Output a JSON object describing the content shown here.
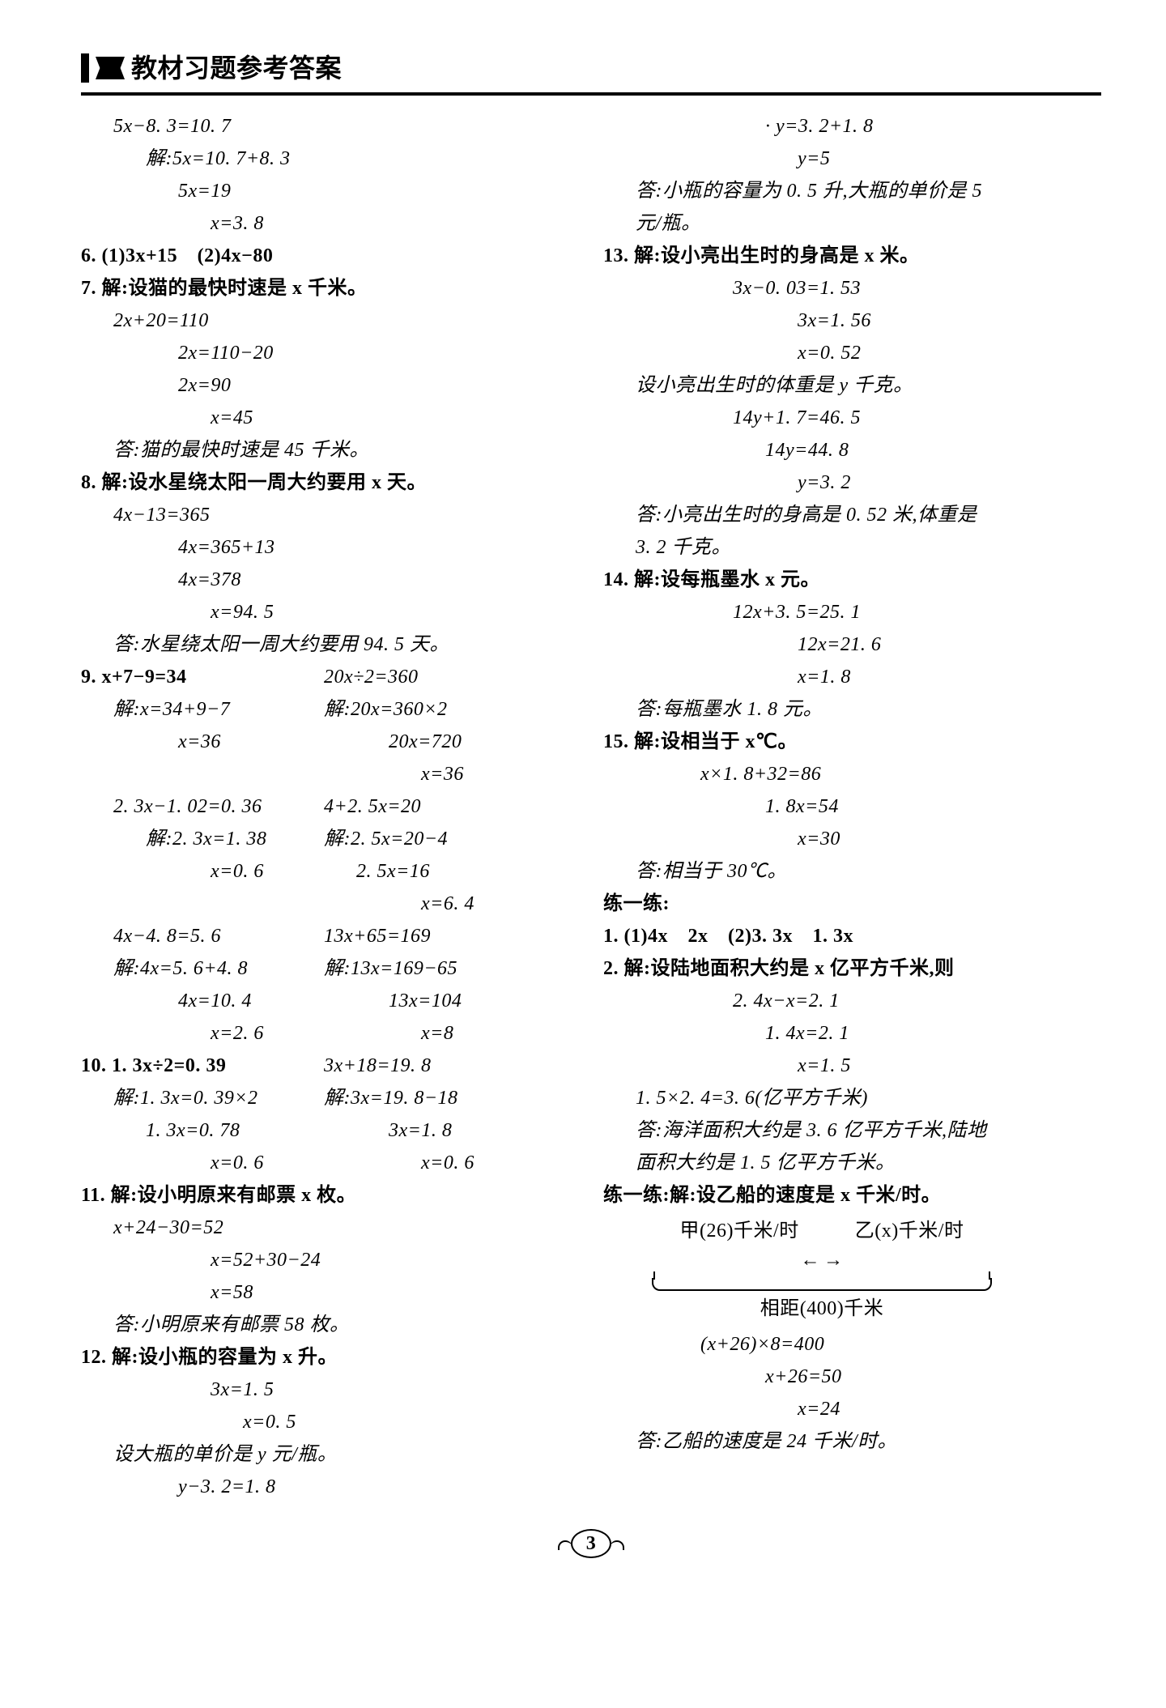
{
  "header": "教材习题参考答案",
  "footer_page": "3",
  "left": [
    {
      "cls": "indent1",
      "t": "5x−8. 3=10. 7"
    },
    {
      "cls": "indent2",
      "t": "解:5x=10. 7+8. 3"
    },
    {
      "cls": "indent3",
      "t": "5x=19"
    },
    {
      "cls": "indent4",
      "t": "x=3. 8"
    },
    {
      "cls": "",
      "t": "6. (1)3x+15　(2)4x−80",
      "bold": true
    },
    {
      "cls": "",
      "t": "7. 解:设猫的最快时速是 x 千米。",
      "bold": true
    },
    {
      "cls": "indent1",
      "t": "2x+20=110"
    },
    {
      "cls": "indent3",
      "t": "2x=110−20"
    },
    {
      "cls": "indent3",
      "t": "2x=90"
    },
    {
      "cls": "indent4",
      "t": "x=45"
    },
    {
      "cls": "indent1",
      "t": "答:猫的最快时速是 45 千米。"
    },
    {
      "cls": "",
      "t": "8. 解:设水星绕太阳一周大约要用 x 天。",
      "bold": true
    },
    {
      "cls": "indent1",
      "t": "4x−13=365"
    },
    {
      "cls": "indent3",
      "t": "4x=365+13"
    },
    {
      "cls": "indent3",
      "t": "4x=378"
    },
    {
      "cls": "indent4",
      "t": "x=94. 5"
    },
    {
      "cls": "indent1",
      "t": "答:水星绕太阳一周大约要用 94. 5 天。"
    },
    {
      "pair": [
        {
          "cls": "",
          "t": "9. x+7−9=34",
          "bold": true
        },
        {
          "cls": "",
          "t": "20x÷2=360"
        }
      ]
    },
    {
      "pair": [
        {
          "cls": "indent1",
          "t": "解:x=34+9−7"
        },
        {
          "cls": "",
          "t": "解:20x=360×2"
        }
      ]
    },
    {
      "pair": [
        {
          "cls": "indent3",
          "t": "x=36"
        },
        {
          "cls": "indent2",
          "t": "20x=720"
        }
      ]
    },
    {
      "pair": [
        {
          "cls": "",
          "t": ""
        },
        {
          "cls": "indent3",
          "t": "x=36"
        }
      ]
    },
    {
      "pair": [
        {
          "cls": "indent1",
          "t": "2. 3x−1. 02=0. 36"
        },
        {
          "cls": "",
          "t": "4+2. 5x=20"
        }
      ]
    },
    {
      "pair": [
        {
          "cls": "indent2",
          "t": "解:2. 3x=1. 38"
        },
        {
          "cls": "",
          "t": "解:2. 5x=20−4"
        }
      ]
    },
    {
      "pair": [
        {
          "cls": "indent4",
          "t": "x=0. 6"
        },
        {
          "cls": "indent1",
          "t": "2. 5x=16"
        }
      ]
    },
    {
      "pair": [
        {
          "cls": "",
          "t": ""
        },
        {
          "cls": "indent3",
          "t": "x=6. 4"
        }
      ]
    },
    {
      "pair": [
        {
          "cls": "indent1",
          "t": "4x−4. 8=5. 6"
        },
        {
          "cls": "",
          "t": "13x+65=169"
        }
      ]
    },
    {
      "pair": [
        {
          "cls": "indent1",
          "t": "解:4x=5. 6+4. 8"
        },
        {
          "cls": "",
          "t": "解:13x=169−65"
        }
      ]
    },
    {
      "pair": [
        {
          "cls": "indent3",
          "t": "4x=10. 4"
        },
        {
          "cls": "indent2",
          "t": "13x=104"
        }
      ]
    },
    {
      "pair": [
        {
          "cls": "indent4",
          "t": "x=2. 6"
        },
        {
          "cls": "indent3",
          "t": "x=8"
        }
      ]
    },
    {
      "pair": [
        {
          "cls": "",
          "t": "10. 1. 3x÷2=0. 39",
          "bold": true
        },
        {
          "cls": "",
          "t": "3x+18=19. 8"
        }
      ]
    },
    {
      "pair": [
        {
          "cls": "indent1",
          "t": "解:1. 3x=0. 39×2"
        },
        {
          "cls": "",
          "t": "解:3x=19. 8−18"
        }
      ]
    },
    {
      "pair": [
        {
          "cls": "indent2",
          "t": "1. 3x=0. 78"
        },
        {
          "cls": "indent2",
          "t": "3x=1. 8"
        }
      ]
    },
    {
      "pair": [
        {
          "cls": "indent4",
          "t": "x=0. 6"
        },
        {
          "cls": "indent3",
          "t": "x=0. 6"
        }
      ]
    },
    {
      "cls": "",
      "t": "11. 解:设小明原来有邮票 x 枚。",
      "bold": true
    },
    {
      "cls": "indent1",
      "t": "x+24−30=52"
    },
    {
      "cls": "indent4",
      "t": "x=52+30−24"
    },
    {
      "cls": "indent4",
      "t": "x=58"
    },
    {
      "cls": "indent1",
      "t": "答:小明原来有邮票 58 枚。"
    },
    {
      "cls": "",
      "t": "12. 解:设小瓶的容量为 x 升。",
      "bold": true
    },
    {
      "cls": "indent4",
      "t": "3x=1. 5"
    },
    {
      "cls": "indent5",
      "t": "x=0. 5"
    },
    {
      "cls": "indent1",
      "t": "设大瓶的单价是 y 元/瓶。"
    },
    {
      "cls": "indent3",
      "t": "y−3. 2=1. 8"
    }
  ],
  "right": [
    {
      "cls": "indent5",
      "t": "· y=3. 2+1. 8"
    },
    {
      "cls": "indent6",
      "t": "y=5"
    },
    {
      "cls": "indent1",
      "t": "答:小瓶的容量为 0. 5 升,大瓶的单价是 5"
    },
    {
      "cls": "indent1",
      "t": "元/瓶。"
    },
    {
      "cls": "",
      "t": "13. 解:设小亮出生时的身高是 x 米。",
      "bold": true
    },
    {
      "cls": "indent4",
      "t": "3x−0. 03=1. 53"
    },
    {
      "cls": "indent6",
      "t": "3x=1. 56"
    },
    {
      "cls": "indent6",
      "t": "  x=0. 52"
    },
    {
      "cls": "indent1",
      "t": "设小亮出生时的体重是 y 千克。"
    },
    {
      "cls": "indent4",
      "t": "14y+1. 7=46. 5"
    },
    {
      "cls": "indent5",
      "t": "14y=44. 8"
    },
    {
      "cls": "indent6",
      "t": "  y=3. 2"
    },
    {
      "cls": "indent1",
      "t": "答:小亮出生时的身高是 0. 52 米,体重是"
    },
    {
      "cls": "indent1",
      "t": "3. 2 千克。"
    },
    {
      "cls": "",
      "t": "14. 解:设每瓶墨水 x 元。",
      "bold": true
    },
    {
      "cls": "indent4",
      "t": "12x+3. 5=25. 1"
    },
    {
      "cls": "indent6",
      "t": "12x=21. 6"
    },
    {
      "cls": "indent6",
      "t": "   x=1. 8"
    },
    {
      "cls": "indent1",
      "t": "答:每瓶墨水 1. 8 元。"
    },
    {
      "cls": "",
      "t": "15. 解:设相当于 x℃。",
      "bold": true
    },
    {
      "cls": "indent3",
      "t": "x×1. 8+32=86"
    },
    {
      "cls": "indent5",
      "t": "1. 8x=54"
    },
    {
      "cls": "indent6",
      "t": "   x=30"
    },
    {
      "cls": "indent1",
      "t": "答:相当于 30℃。"
    },
    {
      "cls": "",
      "t": "练一练:",
      "bold": true
    },
    {
      "cls": "",
      "t": "1. (1)4x　2x　(2)3. 3x　1. 3x",
      "bold": true
    },
    {
      "cls": "",
      "t": "2. 解:设陆地面积大约是 x 亿平方千米,则",
      "bold": true
    },
    {
      "cls": "indent4",
      "t": "2. 4x−x=2. 1"
    },
    {
      "cls": "indent5",
      "t": "1. 4x=2. 1"
    },
    {
      "cls": "indent6",
      "t": "x=1. 5"
    },
    {
      "cls": "indent1",
      "t": "1. 5×2. 4=3. 6(亿平方千米)"
    },
    {
      "cls": "indent1",
      "t": "答:海洋面积大约是 3. 6 亿平方千米,陆地"
    },
    {
      "cls": "indent1",
      "t": "面积大约是 1. 5 亿平方千米。"
    },
    {
      "cls": "",
      "t": "练一练:解:设乙船的速度是 x 千米/时。",
      "bold": true
    },
    {
      "diagram": true
    },
    {
      "cls": "indent3",
      "t": "(x+26)×8=400"
    },
    {
      "cls": "indent5",
      "t": "x+26=50"
    },
    {
      "cls": "indent6",
      "t": "x=24"
    },
    {
      "cls": "indent1",
      "t": "答:乙船的速度是 24 千米/时。"
    }
  ],
  "diagram": {
    "left_label": "甲(26)千米/时",
    "right_label": "乙(x)千米/时",
    "bottom_label": "相距(400)千米"
  }
}
